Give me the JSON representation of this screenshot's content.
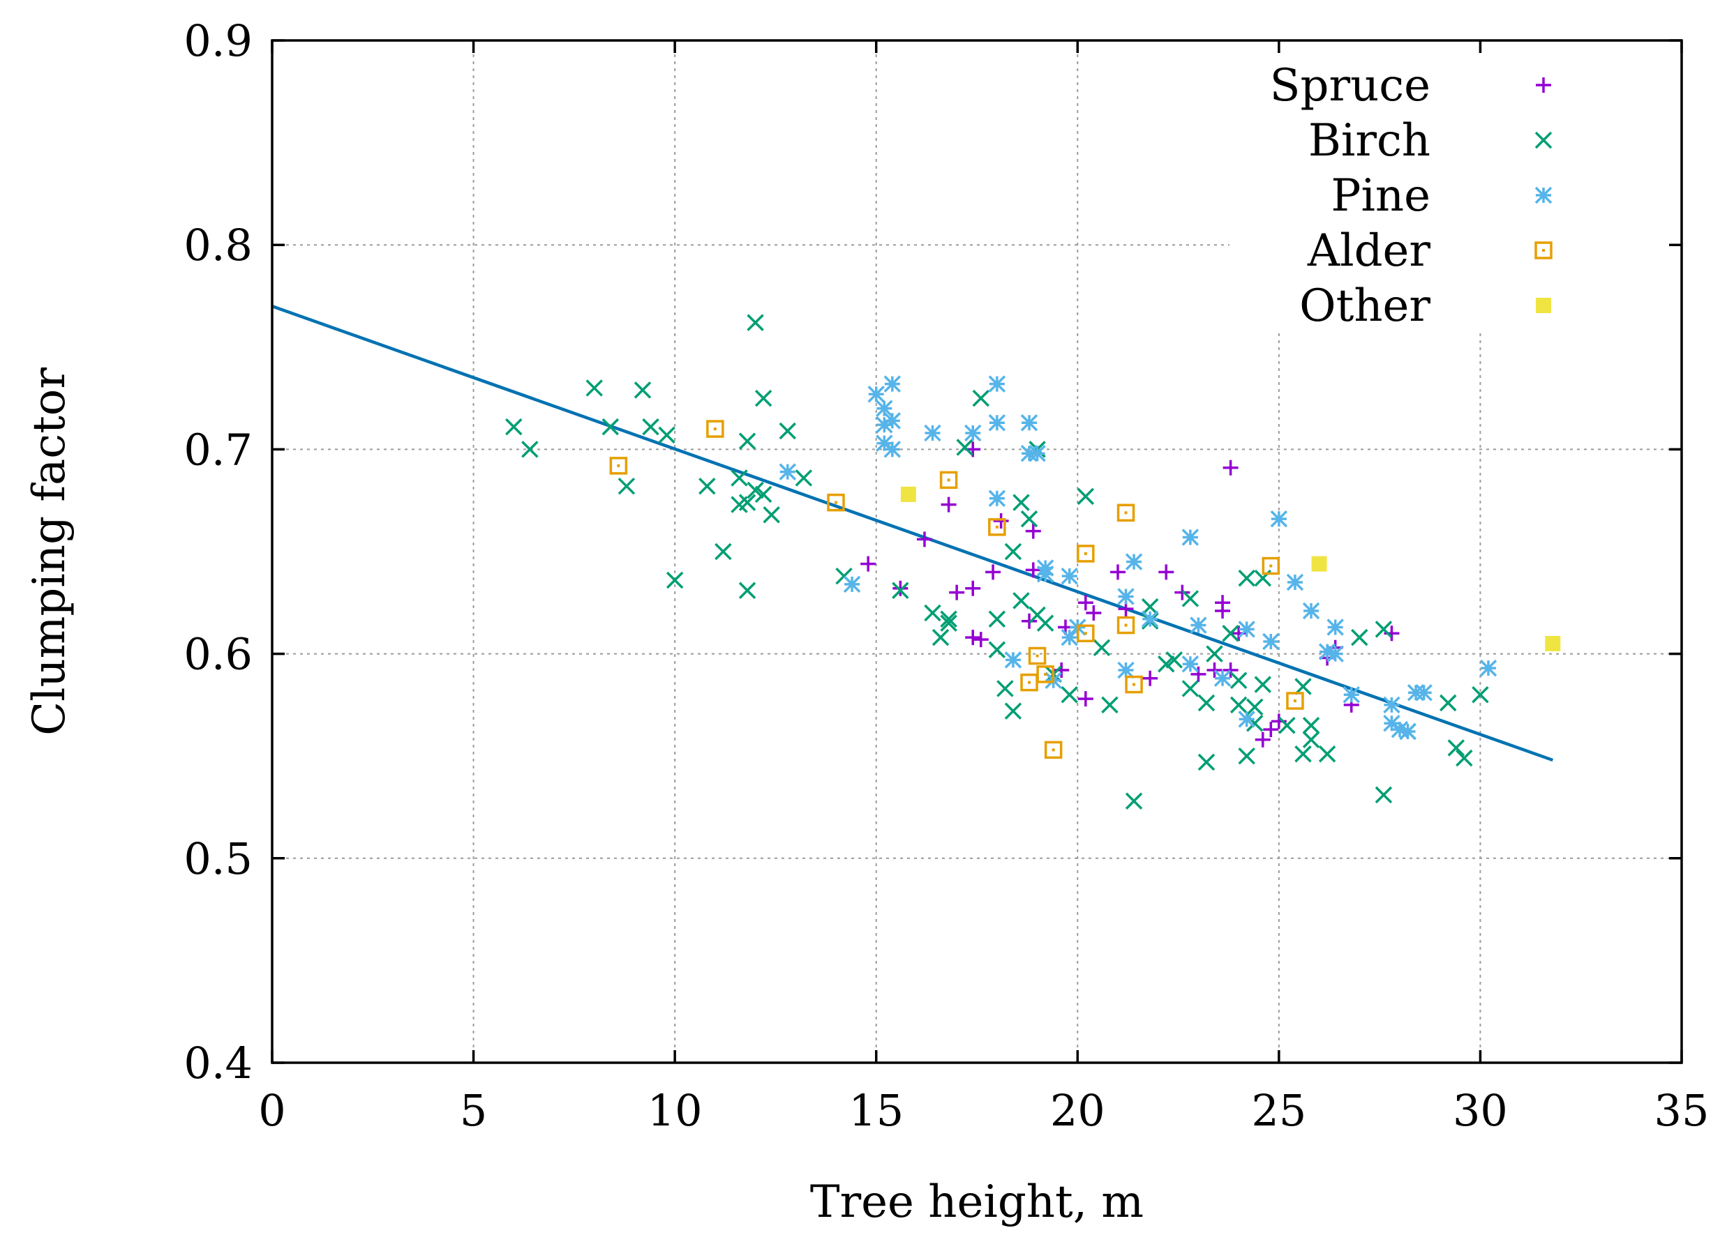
{
  "chart_data": {
    "type": "scatter",
    "title": "",
    "xlabel": "Tree height, m",
    "ylabel": "Clumping factor",
    "xlim": [
      0,
      35
    ],
    "ylim": [
      0.4,
      0.9
    ],
    "xticks": [
      0,
      5,
      10,
      15,
      20,
      25,
      30,
      35
    ],
    "yticks": [
      0.4,
      0.5,
      0.6,
      0.7,
      0.8,
      0.9
    ],
    "xtick_labels": [
      "0",
      "5",
      "10",
      "15",
      "20",
      "25",
      "30",
      "35"
    ],
    "ytick_labels": [
      "0.4",
      "0.5",
      "0.6",
      "0.7",
      "0.8",
      "0.9"
    ],
    "grid": true,
    "legend_position": "top-right",
    "series": [
      {
        "name": "Spruce",
        "marker": "plus",
        "color": "#9400d3",
        "points": [
          [
            14.8,
            0.644
          ],
          [
            15.6,
            0.632
          ],
          [
            16.2,
            0.656
          ],
          [
            16.8,
            0.673
          ],
          [
            17.0,
            0.63
          ],
          [
            17.4,
            0.632
          ],
          [
            17.4,
            0.608
          ],
          [
            17.6,
            0.607
          ],
          [
            17.4,
            0.7
          ],
          [
            17.9,
            0.64
          ],
          [
            18.1,
            0.665
          ],
          [
            18.8,
            0.616
          ],
          [
            18.9,
            0.66
          ],
          [
            18.9,
            0.641
          ],
          [
            19.6,
            0.592
          ],
          [
            19.7,
            0.613
          ],
          [
            20.2,
            0.578
          ],
          [
            20.2,
            0.625
          ],
          [
            20.4,
            0.62
          ],
          [
            21.0,
            0.64
          ],
          [
            21.2,
            0.622
          ],
          [
            21.8,
            0.588
          ],
          [
            22.2,
            0.64
          ],
          [
            22.6,
            0.63
          ],
          [
            23.0,
            0.59
          ],
          [
            23.4,
            0.592
          ],
          [
            23.6,
            0.621
          ],
          [
            23.6,
            0.625
          ],
          [
            23.8,
            0.592
          ],
          [
            23.8,
            0.691
          ],
          [
            24.0,
            0.61
          ],
          [
            25.0,
            0.567
          ],
          [
            24.6,
            0.558
          ],
          [
            24.8,
            0.563
          ],
          [
            26.2,
            0.598
          ],
          [
            26.4,
            0.603
          ],
          [
            26.8,
            0.575
          ],
          [
            27.8,
            0.61
          ]
        ]
      },
      {
        "name": "Birch",
        "marker": "cross",
        "color": "#009e73",
        "points": [
          [
            6.0,
            0.711
          ],
          [
            6.4,
            0.7
          ],
          [
            8.0,
            0.73
          ],
          [
            8.4,
            0.711
          ],
          [
            8.8,
            0.682
          ],
          [
            9.2,
            0.729
          ],
          [
            9.4,
            0.711
          ],
          [
            9.8,
            0.707
          ],
          [
            10.0,
            0.636
          ],
          [
            10.8,
            0.682
          ],
          [
            11.2,
            0.65
          ],
          [
            11.6,
            0.673
          ],
          [
            11.6,
            0.686
          ],
          [
            11.8,
            0.704
          ],
          [
            11.8,
            0.674
          ],
          [
            11.8,
            0.631
          ],
          [
            12.0,
            0.762
          ],
          [
            12.0,
            0.68
          ],
          [
            12.2,
            0.678
          ],
          [
            12.2,
            0.725
          ],
          [
            12.4,
            0.668
          ],
          [
            12.8,
            0.709
          ],
          [
            13.2,
            0.686
          ],
          [
            14.2,
            0.638
          ],
          [
            15.6,
            0.631
          ],
          [
            16.4,
            0.62
          ],
          [
            16.6,
            0.608
          ],
          [
            16.8,
            0.615
          ],
          [
            16.8,
            0.617
          ],
          [
            17.2,
            0.701
          ],
          [
            17.6,
            0.725
          ],
          [
            18.0,
            0.602
          ],
          [
            18.0,
            0.617
          ],
          [
            18.2,
            0.583
          ],
          [
            18.4,
            0.572
          ],
          [
            18.4,
            0.65
          ],
          [
            18.6,
            0.674
          ],
          [
            18.6,
            0.626
          ],
          [
            18.8,
            0.666
          ],
          [
            19.0,
            0.619
          ],
          [
            19.0,
            0.7
          ],
          [
            19.2,
            0.615
          ],
          [
            19.4,
            0.59
          ],
          [
            19.8,
            0.58
          ],
          [
            20.2,
            0.677
          ],
          [
            20.6,
            0.603
          ],
          [
            20.8,
            0.575
          ],
          [
            21.4,
            0.528
          ],
          [
            21.8,
            0.623
          ],
          [
            21.8,
            0.616
          ],
          [
            22.2,
            0.595
          ],
          [
            22.4,
            0.597
          ],
          [
            22.8,
            0.583
          ],
          [
            22.8,
            0.627
          ],
          [
            23.2,
            0.576
          ],
          [
            23.2,
            0.547
          ],
          [
            23.4,
            0.6
          ],
          [
            23.8,
            0.61
          ],
          [
            24.0,
            0.587
          ],
          [
            24.0,
            0.575
          ],
          [
            24.2,
            0.55
          ],
          [
            24.2,
            0.637
          ],
          [
            24.4,
            0.574
          ],
          [
            24.4,
            0.566
          ],
          [
            24.6,
            0.637
          ],
          [
            24.6,
            0.585
          ],
          [
            25.2,
            0.565
          ],
          [
            25.6,
            0.551
          ],
          [
            25.6,
            0.584
          ],
          [
            25.8,
            0.565
          ],
          [
            25.8,
            0.558
          ],
          [
            26.2,
            0.551
          ],
          [
            27.0,
            0.608
          ],
          [
            27.6,
            0.531
          ],
          [
            27.6,
            0.612
          ],
          [
            28.2,
            0.562
          ],
          [
            29.2,
            0.576
          ],
          [
            29.4,
            0.554
          ],
          [
            29.6,
            0.549
          ],
          [
            30.0,
            0.58
          ]
        ]
      },
      {
        "name": "Pine",
        "marker": "star",
        "color": "#56b4e9",
        "points": [
          [
            12.8,
            0.689
          ],
          [
            14.4,
            0.634
          ],
          [
            15.0,
            0.727
          ],
          [
            15.2,
            0.72
          ],
          [
            15.2,
            0.712
          ],
          [
            15.2,
            0.703
          ],
          [
            15.4,
            0.732
          ],
          [
            15.4,
            0.714
          ],
          [
            15.4,
            0.7
          ],
          [
            16.4,
            0.708
          ],
          [
            17.4,
            0.708
          ],
          [
            18.0,
            0.732
          ],
          [
            18.0,
            0.713
          ],
          [
            18.0,
            0.676
          ],
          [
            18.8,
            0.713
          ],
          [
            18.8,
            0.698
          ],
          [
            19.0,
            0.698
          ],
          [
            18.4,
            0.597
          ],
          [
            19.2,
            0.642
          ],
          [
            19.2,
            0.639
          ],
          [
            19.4,
            0.587
          ],
          [
            19.8,
            0.638
          ],
          [
            19.8,
            0.608
          ],
          [
            20.0,
            0.613
          ],
          [
            21.2,
            0.628
          ],
          [
            21.2,
            0.592
          ],
          [
            21.4,
            0.645
          ],
          [
            21.8,
            0.617
          ],
          [
            22.8,
            0.657
          ],
          [
            22.8,
            0.595
          ],
          [
            23.0,
            0.614
          ],
          [
            23.6,
            0.588
          ],
          [
            24.2,
            0.612
          ],
          [
            24.2,
            0.568
          ],
          [
            24.8,
            0.606
          ],
          [
            25.0,
            0.666
          ],
          [
            25.4,
            0.635
          ],
          [
            25.8,
            0.621
          ],
          [
            26.4,
            0.613
          ],
          [
            26.4,
            0.6
          ],
          [
            26.2,
            0.601
          ],
          [
            26.8,
            0.58
          ],
          [
            27.8,
            0.575
          ],
          [
            27.8,
            0.566
          ],
          [
            28.0,
            0.563
          ],
          [
            28.2,
            0.562
          ],
          [
            28.4,
            0.581
          ],
          [
            28.6,
            0.581
          ],
          [
            30.2,
            0.593
          ]
        ]
      },
      {
        "name": "Alder",
        "marker": "square-open",
        "color": "#e69f00",
        "points": [
          [
            8.6,
            0.692
          ],
          [
            11.0,
            0.71
          ],
          [
            14.0,
            0.674
          ],
          [
            16.8,
            0.685
          ],
          [
            18.0,
            0.662
          ],
          [
            18.8,
            0.586
          ],
          [
            19.0,
            0.599
          ],
          [
            19.2,
            0.59
          ],
          [
            19.4,
            0.553
          ],
          [
            20.2,
            0.649
          ],
          [
            20.2,
            0.61
          ],
          [
            21.2,
            0.669
          ],
          [
            21.2,
            0.614
          ],
          [
            21.4,
            0.585
          ],
          [
            24.8,
            0.643
          ],
          [
            25.4,
            0.577
          ]
        ]
      },
      {
        "name": "Other",
        "marker": "square-filled",
        "color": "#f0e442",
        "points": [
          [
            15.8,
            0.678
          ],
          [
            26.0,
            0.644
          ],
          [
            31.8,
            0.605
          ]
        ]
      }
    ],
    "fit_line": {
      "color": "#0072b2",
      "x": [
        0,
        31.8
      ],
      "y": [
        0.77,
        0.548
      ]
    }
  }
}
